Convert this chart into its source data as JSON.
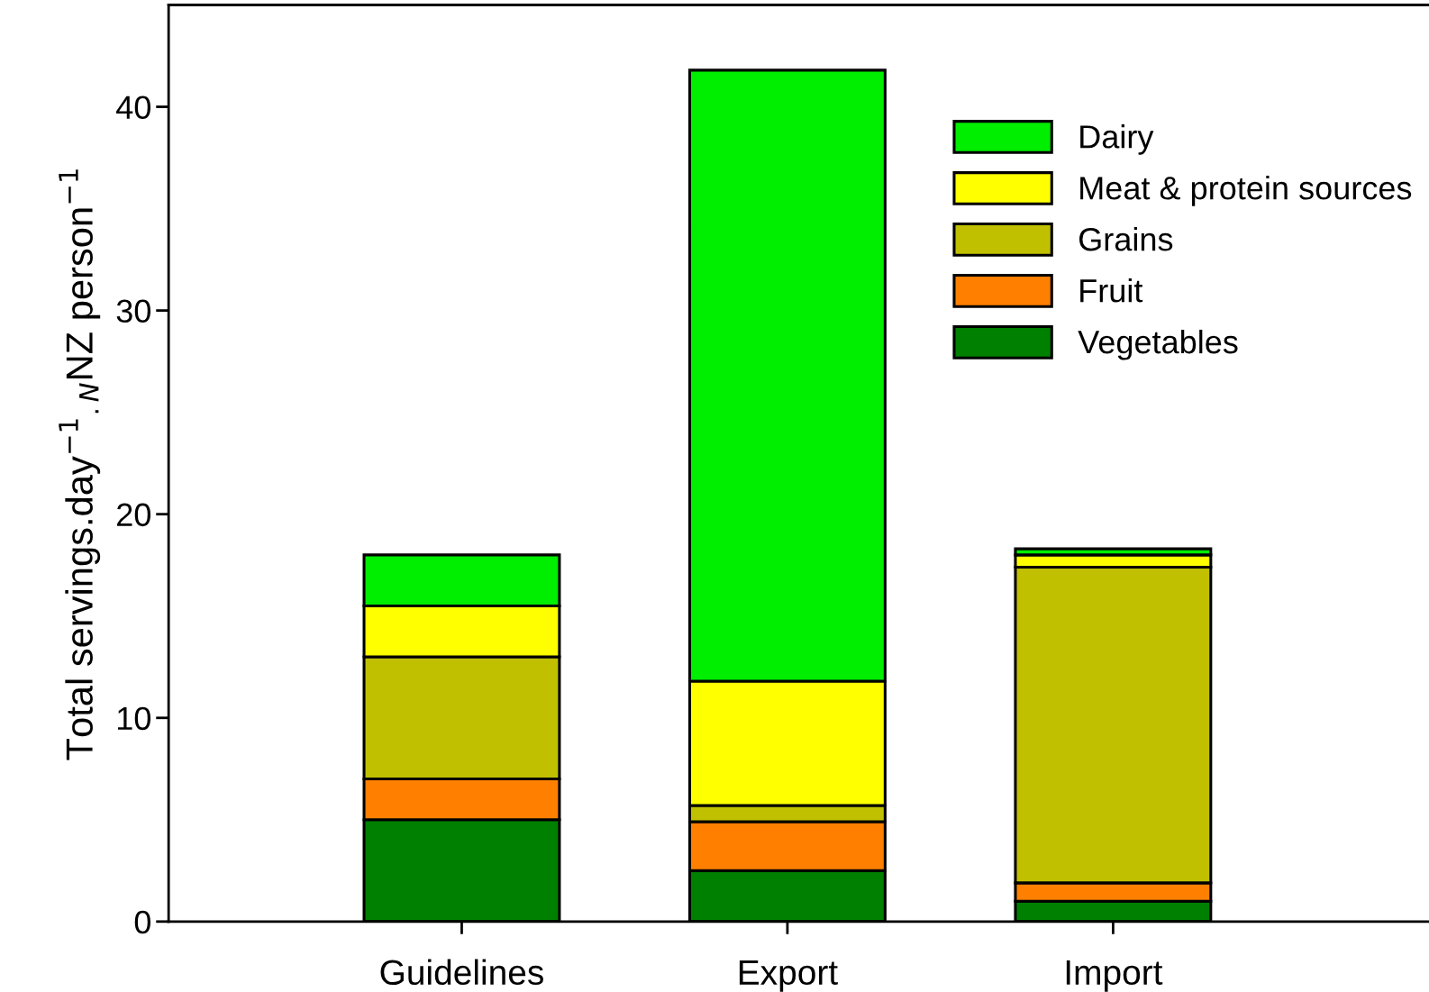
{
  "chart_data": {
    "type": "bar",
    "stacked": true,
    "ylabel": "Total servings.day$^{−1}$$_{.N}$NZ person$^{−1}$",
    "categories": [
      "Guidelines",
      "Export",
      "Import"
    ],
    "series": [
      {
        "name": "Vegetables",
        "color": "#008000",
        "values": [
          5.0,
          2.5,
          1.0
        ]
      },
      {
        "name": "Fruit",
        "color": "#ff8000",
        "values": [
          2.0,
          2.4,
          0.9
        ]
      },
      {
        "name": "Grains",
        "color": "#c0c000",
        "values": [
          6.0,
          0.8,
          15.5
        ]
      },
      {
        "name": "Meat & protein sources",
        "color": "#ffff00",
        "values": [
          2.5,
          6.1,
          0.6
        ]
      },
      {
        "name": "Dairy",
        "color": "#00ee00",
        "values": [
          2.5,
          30.0,
          0.3
        ]
      }
    ],
    "ylim": [
      0,
      45
    ],
    "yticks": [
      0,
      10,
      20,
      30,
      40
    ],
    "grid": false,
    "legend": "top right"
  }
}
